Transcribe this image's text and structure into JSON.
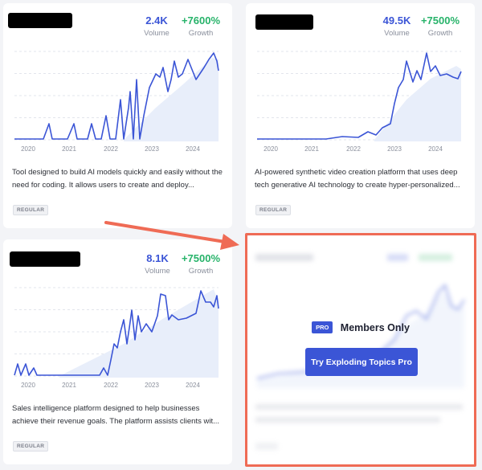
{
  "colors": {
    "volume": "#3b55d6",
    "growth": "#27b36a",
    "line": "#3b55d6",
    "trend_fill": "#e8eefa",
    "arrow": "#ef6b55"
  },
  "cards": [
    {
      "title_redacted": true,
      "volume": "2.4K",
      "volume_label": "Volume",
      "growth": "+7600%",
      "growth_label": "Growth",
      "x_labels": [
        "2020",
        "2021",
        "2022",
        "2023",
        "2024"
      ],
      "description": "Tool designed to build AI models quickly and easily without the need for coding. It allows users to create and deploy...",
      "tag": "REGULAR"
    },
    {
      "title_redacted": true,
      "volume": "49.5K",
      "volume_label": "Volume",
      "growth": "+7500%",
      "growth_label": "Growth",
      "x_labels": [
        "2020",
        "2021",
        "2022",
        "2023",
        "2024"
      ],
      "description": "AI-powered synthetic video creation platform that uses deep tech generative AI technology to create hyper-personalized...",
      "tag": "REGULAR"
    },
    {
      "title_redacted": true,
      "volume": "8.1K",
      "volume_label": "Volume",
      "growth": "+7500%",
      "growth_label": "Growth",
      "x_labels": [
        "2020",
        "2021",
        "2022",
        "2023",
        "2024"
      ],
      "description": "Sales intelligence platform designed to help businesses achieve their revenue goals. The platform assists clients wit...",
      "tag": "REGULAR"
    }
  ],
  "locked_card": {
    "pro_badge": "PRO",
    "members_only": "Members Only",
    "cta_label": "Try Exploding Topics Pro"
  }
}
